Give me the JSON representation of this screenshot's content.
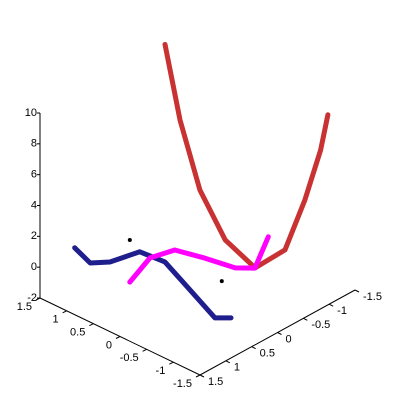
{
  "chart_data": {
    "type": "line3d",
    "xlim": [
      -1.5,
      1.5
    ],
    "xticks": [
      1.5,
      1,
      0.5,
      0,
      -0.5,
      -1,
      -1.5
    ],
    "ylim": [
      -1.5,
      1.5
    ],
    "yticks": [
      1.5,
      1,
      0.5,
      0,
      -0.5,
      -1,
      -1.5
    ],
    "zlim": [
      -2,
      10
    ],
    "zticks": [
      -2,
      0,
      2,
      4,
      6,
      8,
      10
    ],
    "series": [
      {
        "color": "#c83232",
        "x": [
          1.5,
          1.2,
          0.75,
          0.15,
          -0.45,
          -0.75,
          -0.9,
          -1,
          -1.02
        ],
        "y": [
          -0.92,
          -0.9,
          -0.82,
          -0.69,
          -0.65,
          -0.92,
          -1.15,
          -1.35,
          -1.47
        ],
        "z": [
          10,
          5.64,
          1.99,
          -0.01,
          -0.75,
          0.42,
          3.49,
          6.52,
          8.62
        ]
      },
      {
        "color": "#1e1e8c",
        "x": [
          1.43,
          1.14,
          0.77,
          0.21,
          -0.26,
          -0.73,
          -1.2,
          -1.5
        ],
        "y": [
          0.9,
          0.9,
          0.9,
          0.9,
          0.9,
          0.9,
          0.9,
          0.9
        ],
        "z": [
          0.27,
          -0.23,
          0.45,
          2.04,
          2.17,
          1.14,
          0.1,
          0.6
        ]
      },
      {
        "color": "#ff00ff",
        "x": [
          0,
          0,
          0,
          0,
          0,
          0,
          0
        ],
        "y": [
          1.31,
          0.92,
          0.44,
          -0.14,
          -0.73,
          -1.11,
          -1.37
        ],
        "z": [
          1.18,
          2.03,
          1.66,
          0.07,
          -1.65,
          -2.36,
          -0.81
        ]
      }
    ],
    "points": {
      "color": "#000000",
      "x": [
        0,
        0
      ],
      "y": [
        1.31,
        -0.47
      ],
      "z": [
        3.91,
        -2.03
      ]
    }
  }
}
